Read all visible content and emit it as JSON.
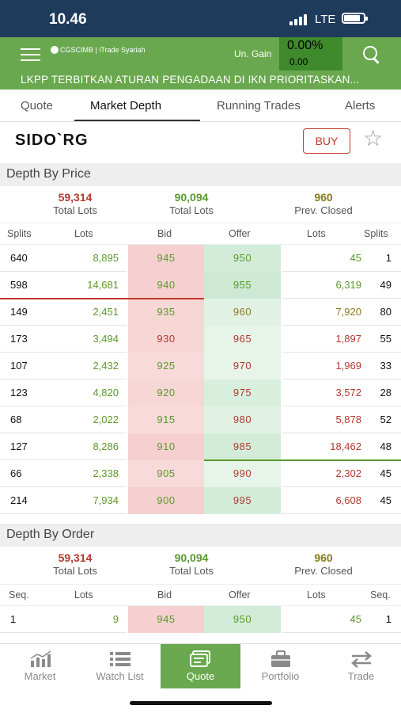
{
  "status": {
    "time": "10.46",
    "network": "LTE"
  },
  "header": {
    "brand": "CGSCIMB | iTrade Syariah",
    "un_gain_label": "Un. Gain",
    "un_gain_pct": "0.00%",
    "un_gain_value": "0.00"
  },
  "ticker": "LKPP TERBITKAN ATURAN PENGADAAN DI IKN PRIORITASKAN...",
  "tabs": [
    {
      "label": "Quote"
    },
    {
      "label": "Market Depth"
    },
    {
      "label": "Running Trades"
    },
    {
      "label": "Alerts"
    }
  ],
  "stock": {
    "code": "SIDO`RG",
    "buy_label": "BUY"
  },
  "depth_by_price": {
    "title": "Depth By Price",
    "totals": [
      {
        "value": "59,314",
        "label": "Total Lots"
      },
      {
        "value": "90,094",
        "label": "Total Lots"
      },
      {
        "value": "960",
        "label": "Prev. Closed"
      }
    ],
    "headers": {
      "left_splits": "Splits",
      "left_lots": "Lots",
      "bid": "Bid",
      "offer": "Offer",
      "right_lots": "Lots",
      "right_splits": "Splits"
    },
    "rows": [
      {
        "bs": "640",
        "bl": "8,895",
        "bid": "945",
        "off": "950",
        "ol": "45",
        "os": "1"
      },
      {
        "bs": "598",
        "bl": "14,681",
        "bid": "940",
        "off": "955",
        "ol": "6,319",
        "os": "49"
      },
      {
        "bs": "149",
        "bl": "2,451",
        "bid": "935",
        "off": "960",
        "ol": "7,920",
        "os": "80"
      },
      {
        "bs": "173",
        "bl": "3,494",
        "bid": "930",
        "off": "965",
        "ol": "1,897",
        "os": "55"
      },
      {
        "bs": "107",
        "bl": "2,432",
        "bid": "925",
        "off": "970",
        "ol": "1,969",
        "os": "33"
      },
      {
        "bs": "123",
        "bl": "4,820",
        "bid": "920",
        "off": "975",
        "ol": "3,572",
        "os": "28"
      },
      {
        "bs": "68",
        "bl": "2,022",
        "bid": "915",
        "off": "980",
        "ol": "5,878",
        "os": "52"
      },
      {
        "bs": "127",
        "bl": "8,286",
        "bid": "910",
        "off": "985",
        "ol": "18,462",
        "os": "48"
      },
      {
        "bs": "66",
        "bl": "2,338",
        "bid": "905",
        "off": "990",
        "ol": "2,302",
        "os": "45"
      },
      {
        "bs": "214",
        "bl": "7,934",
        "bid": "900",
        "off": "995",
        "ol": "6,608",
        "os": "45"
      }
    ]
  },
  "depth_by_order": {
    "title": "Depth By Order",
    "totals": [
      {
        "value": "59,314",
        "label": "Total Lots"
      },
      {
        "value": "90,094",
        "label": "Total Lots"
      },
      {
        "value": "960",
        "label": "Prev. Closed"
      }
    ],
    "headers": {
      "left_seq": "Seq.",
      "left_lots": "Lots",
      "bid": "Bid",
      "offer": "Offer",
      "right_lots": "Lots",
      "right_seq": "Seq."
    },
    "rows": [
      {
        "bs": "1",
        "bl": "9",
        "bid": "945",
        "off": "950",
        "ol": "45",
        "os": "1"
      }
    ]
  },
  "nav": [
    {
      "label": "Market",
      "icon": "bar-chart-icon"
    },
    {
      "label": "Watch List",
      "icon": "list-icon"
    },
    {
      "label": "Quote",
      "icon": "quote-cards-icon"
    },
    {
      "label": "Portfolio",
      "icon": "briefcase-icon"
    },
    {
      "label": "Trade",
      "icon": "transfer-arrows-icon"
    }
  ],
  "colors": {
    "brand_green": "#6aa84f",
    "up_green": "#5a9a2a",
    "down_red": "#b03a2e",
    "price_olive": "#8a7a1a",
    "bid_bg": "#f7d3d3",
    "offer_bg": "#d3ecd9"
  }
}
